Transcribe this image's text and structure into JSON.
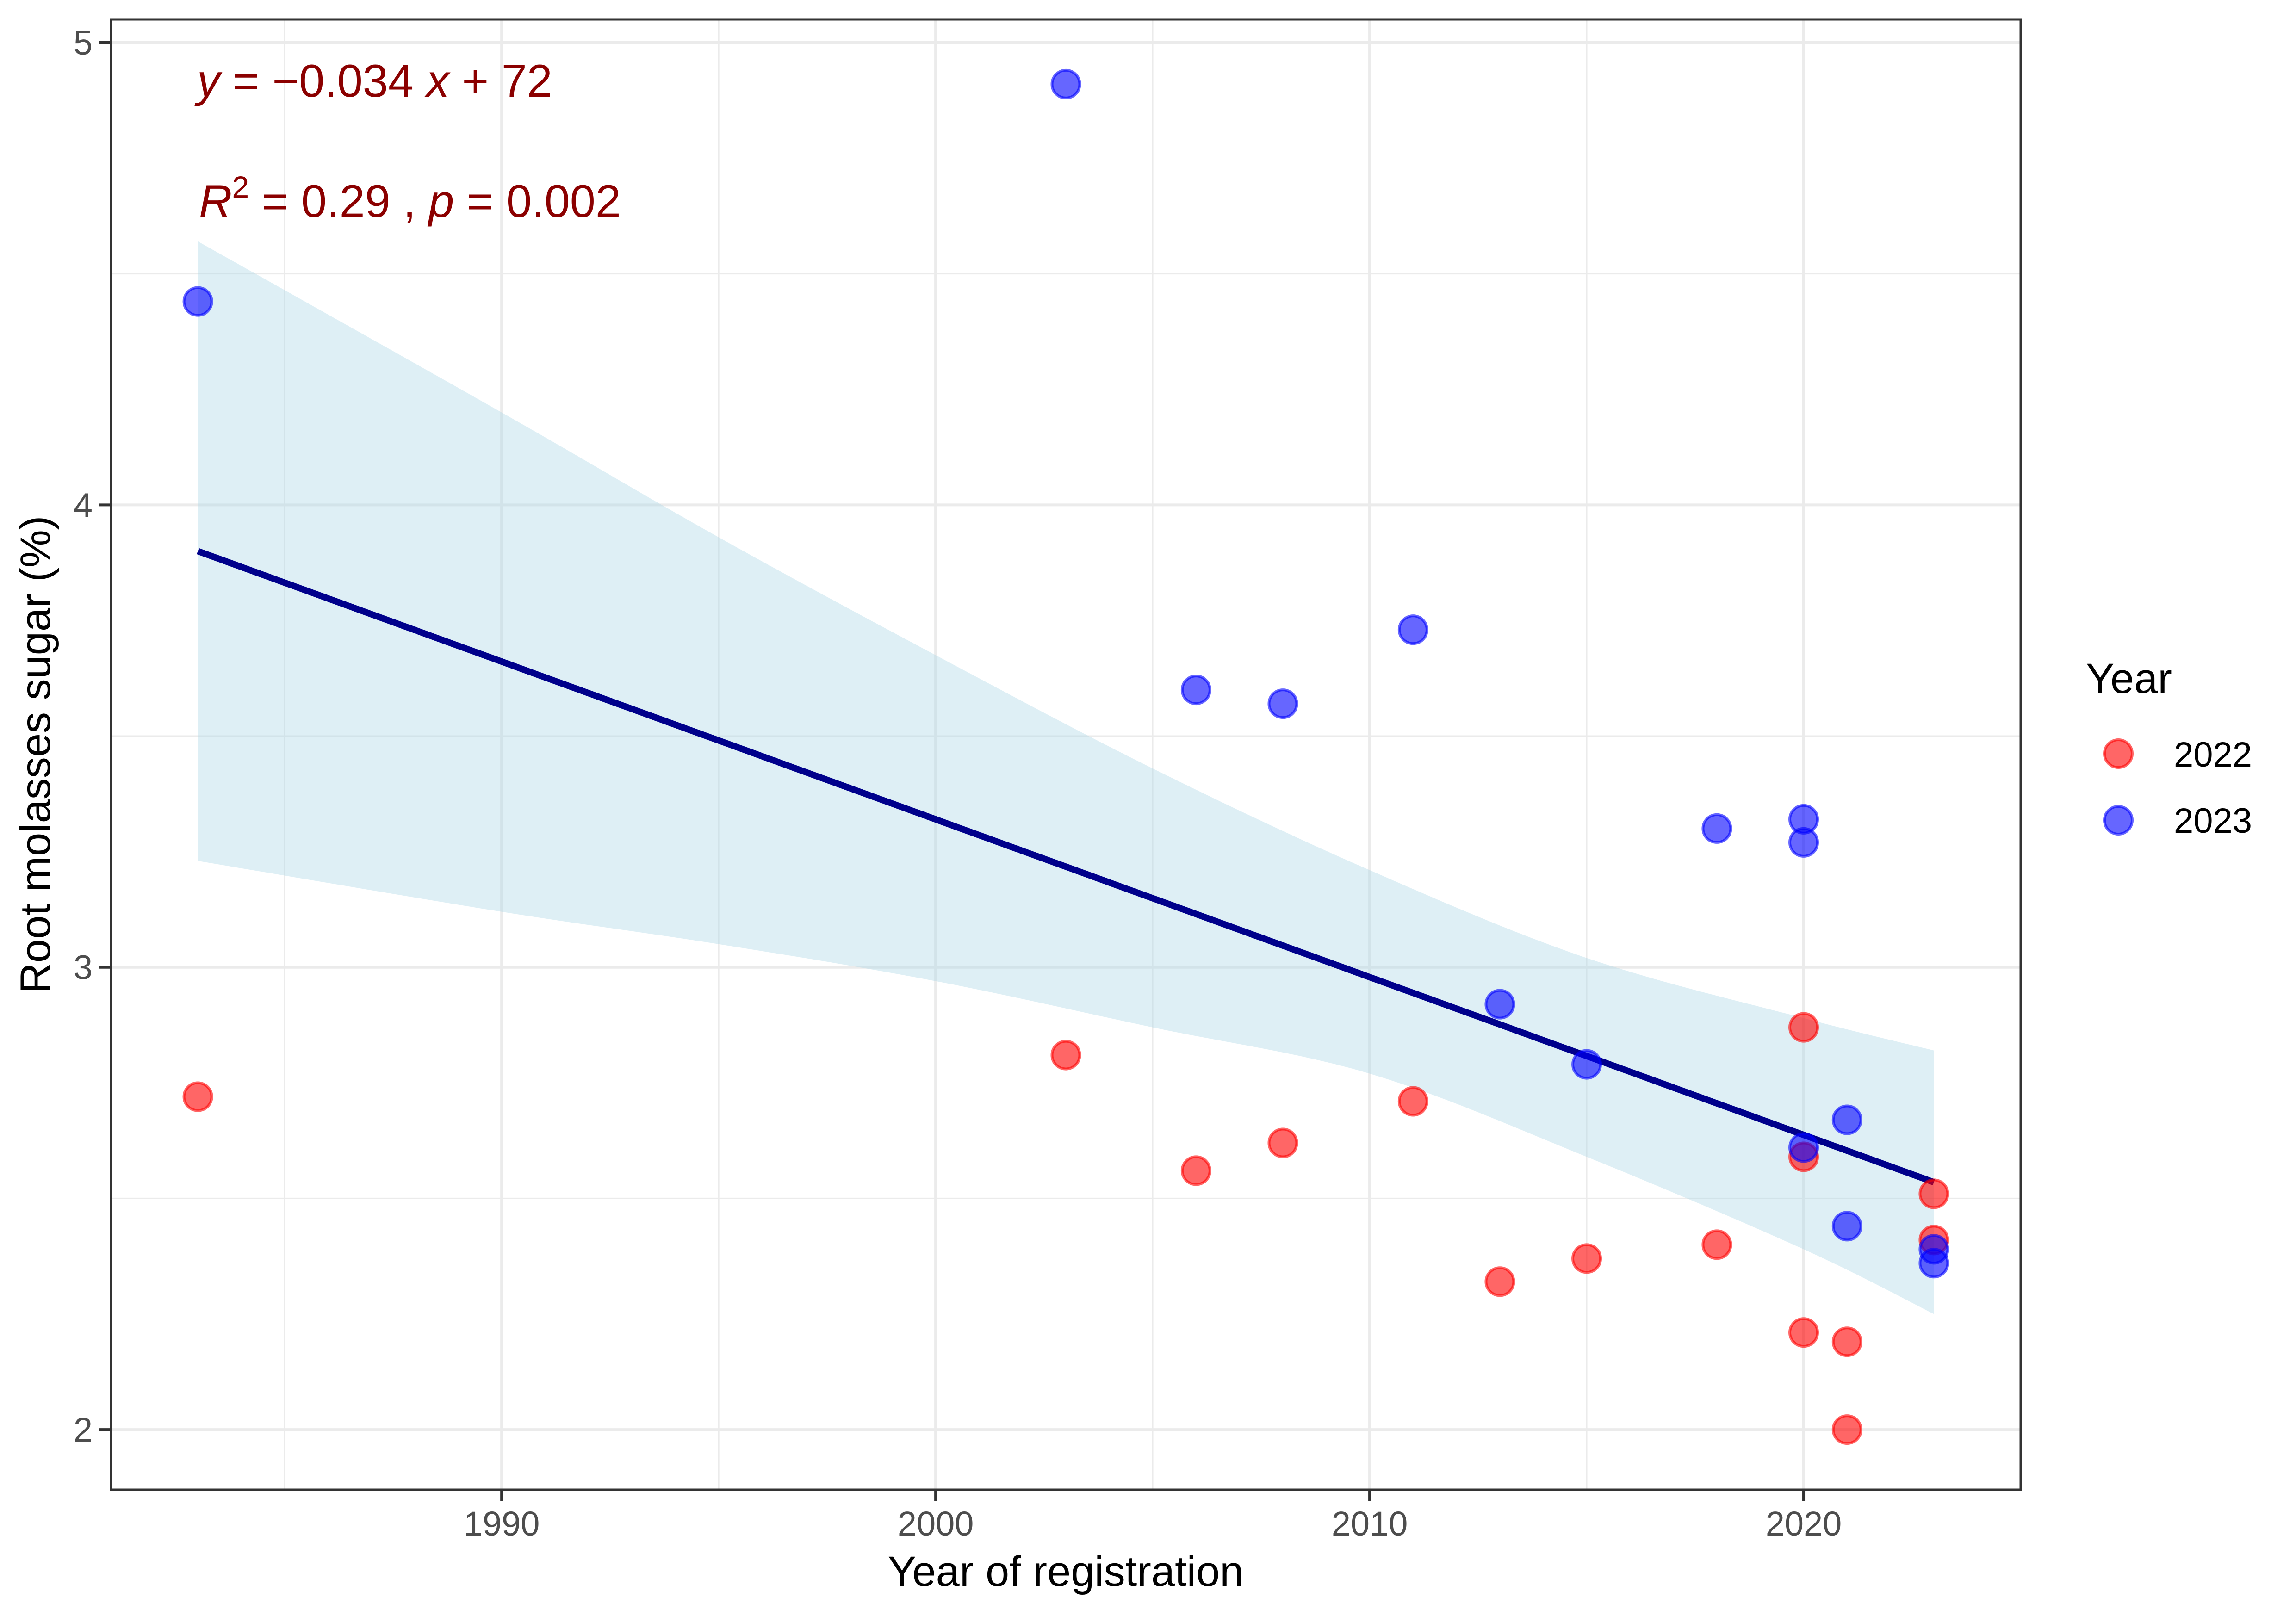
{
  "chart_data": {
    "type": "scatter",
    "title": "",
    "xlabel": "Year of registration",
    "ylabel": "Root molasses sugar (%)",
    "xlim": [
      1981.0,
      2025.0
    ],
    "ylim": [
      1.87,
      5.05
    ],
    "x_ticks": [
      1990,
      2000,
      2010,
      2020
    ],
    "x_tick_labels": [
      "1990",
      "2000",
      "2010",
      "2020"
    ],
    "x_minor_ticks": [
      1985,
      1995,
      2005,
      2015
    ],
    "y_ticks": [
      2,
      3,
      4,
      5
    ],
    "y_tick_labels": [
      "2",
      "3",
      "4",
      "5"
    ],
    "y_minor_ticks": [
      2.5,
      3.5,
      4.5
    ],
    "grid": true,
    "legend": {
      "title": "Year",
      "placement": "right",
      "entries": [
        {
          "label": "2022",
          "color": "#FF0000"
        },
        {
          "label": "2023",
          "color": "#0000FF"
        }
      ]
    },
    "series": [
      {
        "name": "2022",
        "color": "#FF0000",
        "points": [
          {
            "x": 1983,
            "y": 2.72
          },
          {
            "x": 2003,
            "y": 2.81
          },
          {
            "x": 2006,
            "y": 2.56
          },
          {
            "x": 2008,
            "y": 2.62
          },
          {
            "x": 2011,
            "y": 2.71
          },
          {
            "x": 2013,
            "y": 2.32
          },
          {
            "x": 2015,
            "y": 2.37
          },
          {
            "x": 2018,
            "y": 2.4
          },
          {
            "x": 2020,
            "y": 2.87
          },
          {
            "x": 2020,
            "y": 2.59
          },
          {
            "x": 2020,
            "y": 2.21
          },
          {
            "x": 2021,
            "y": 2.19
          },
          {
            "x": 2021,
            "y": 2.0
          },
          {
            "x": 2023,
            "y": 2.51
          },
          {
            "x": 2023,
            "y": 2.41
          }
        ]
      },
      {
        "name": "2023",
        "color": "#0000FF",
        "points": [
          {
            "x": 1983,
            "y": 4.44
          },
          {
            "x": 2003,
            "y": 4.91
          },
          {
            "x": 2006,
            "y": 3.6
          },
          {
            "x": 2008,
            "y": 3.57
          },
          {
            "x": 2011,
            "y": 3.73
          },
          {
            "x": 2013,
            "y": 2.92
          },
          {
            "x": 2015,
            "y": 2.79
          },
          {
            "x": 2018,
            "y": 3.3
          },
          {
            "x": 2020,
            "y": 3.32
          },
          {
            "x": 2020,
            "y": 3.27
          },
          {
            "x": 2020,
            "y": 2.61
          },
          {
            "x": 2021,
            "y": 2.67
          },
          {
            "x": 2021,
            "y": 2.44
          },
          {
            "x": 2023,
            "y": 2.39
          },
          {
            "x": 2023,
            "y": 2.36
          }
        ]
      }
    ],
    "regression": {
      "color": "#00008B",
      "x_start": 1983,
      "x_end": 2023,
      "y_start": 3.9,
      "y_end": 2.535,
      "band_color": "#ADD8E6",
      "band": [
        {
          "x": 1983,
          "lower": 3.23,
          "upper": 4.57
        },
        {
          "x": 1990,
          "lower": 3.12,
          "upper": 4.2
        },
        {
          "x": 1995,
          "lower": 3.05,
          "upper": 3.93
        },
        {
          "x": 2000,
          "lower": 2.97,
          "upper": 3.675
        },
        {
          "x": 2005,
          "lower": 2.87,
          "upper": 3.43
        },
        {
          "x": 2010,
          "lower": 2.77,
          "upper": 3.21
        },
        {
          "x": 2015,
          "lower": 2.59,
          "upper": 3.02
        },
        {
          "x": 2020,
          "lower": 2.39,
          "upper": 2.89
        },
        {
          "x": 2023,
          "lower": 2.25,
          "upper": 2.82
        }
      ]
    },
    "annotations": {
      "color": "#8B0000",
      "equation": {
        "y": "y",
        "eq1": " = ",
        "minus": "−",
        "coef": "0.034",
        "x": "x",
        "plus": " + ",
        "intercept": "72"
      },
      "stats": {
        "R": "R",
        "sup": "2",
        "eq1": " = ",
        "r2": "0.29",
        "sep": " , ",
        "p": "p",
        "eq2": " = ",
        "pval": "0.002"
      }
    }
  }
}
